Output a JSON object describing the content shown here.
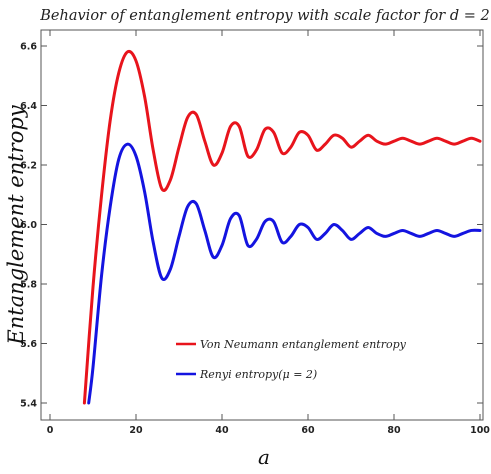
{
  "chart_data": {
    "type": "line",
    "title": "Behavior of entanglement entropy with scale factor for d = 2",
    "xlabel": "a",
    "ylabel": "Entanglement entropy",
    "xlim": [
      0,
      100
    ],
    "ylim": [
      5.4,
      6.62
    ],
    "x_ticks": [
      "0",
      "20",
      "40",
      "60",
      "80",
      "100"
    ],
    "y_ticks": [
      "5.4",
      "5.6",
      "5.8",
      "6.0",
      "6.2",
      "6.4",
      "6.6"
    ],
    "grid": false,
    "legend_position": "center",
    "series": [
      {
        "name": "Von Neumann entanglement entropy",
        "color": "#e8141c",
        "x": [
          8,
          10,
          12,
          14,
          16,
          18,
          20,
          22,
          24,
          26,
          28,
          30,
          32,
          34,
          36,
          38,
          40,
          42,
          44,
          46,
          48,
          50,
          52,
          54,
          56,
          58,
          60,
          62,
          64,
          66,
          68,
          70,
          72,
          74,
          76,
          78,
          80,
          82,
          84,
          86,
          88,
          90,
          92,
          94,
          96,
          98,
          100
        ],
        "values": [
          5.4,
          5.79,
          6.1,
          6.35,
          6.51,
          6.58,
          6.55,
          6.43,
          6.25,
          6.12,
          6.15,
          6.26,
          6.36,
          6.37,
          6.28,
          6.2,
          6.24,
          6.33,
          6.33,
          6.23,
          6.25,
          6.32,
          6.31,
          6.24,
          6.26,
          6.31,
          6.3,
          6.25,
          6.27,
          6.3,
          6.29,
          6.26,
          6.28,
          6.3,
          6.28,
          6.27,
          6.28,
          6.29,
          6.28,
          6.27,
          6.28,
          6.29,
          6.28,
          6.27,
          6.28,
          6.29,
          6.28
        ]
      },
      {
        "name": "Renyi entropy(μ = 2)",
        "color": "#1414e0",
        "x": [
          9,
          10,
          12,
          14,
          16,
          18,
          20,
          22,
          24,
          26,
          28,
          30,
          32,
          34,
          36,
          38,
          40,
          42,
          44,
          46,
          48,
          50,
          52,
          54,
          56,
          58,
          60,
          62,
          64,
          66,
          68,
          70,
          72,
          74,
          76,
          78,
          80,
          82,
          84,
          86,
          88,
          90,
          92,
          94,
          96,
          98,
          100
        ],
        "values": [
          5.4,
          5.52,
          5.83,
          6.06,
          6.22,
          6.27,
          6.23,
          6.11,
          5.94,
          5.82,
          5.85,
          5.96,
          6.06,
          6.07,
          5.98,
          5.89,
          5.93,
          6.02,
          6.03,
          5.93,
          5.95,
          6.01,
          6.01,
          5.94,
          5.96,
          6.0,
          5.99,
          5.95,
          5.97,
          6.0,
          5.98,
          5.95,
          5.97,
          5.99,
          5.97,
          5.96,
          5.97,
          5.98,
          5.97,
          5.96,
          5.97,
          5.98,
          5.97,
          5.96,
          5.97,
          5.98,
          5.98
        ]
      }
    ]
  }
}
